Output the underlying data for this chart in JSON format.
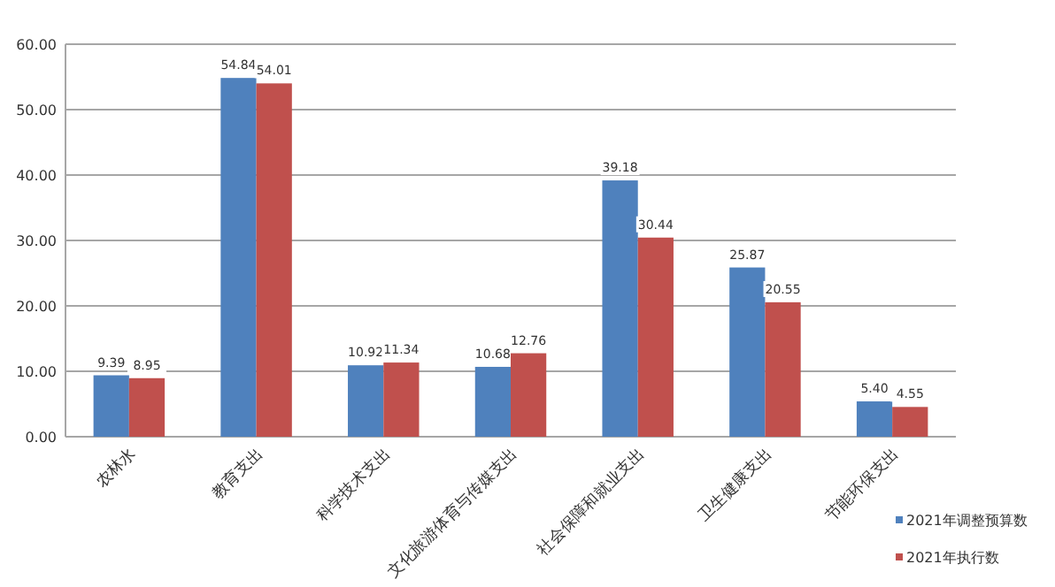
{
  "chart_data": {
    "type": "bar",
    "categories": [
      "农林水",
      "教育支出",
      "科学技术支出",
      "文化旅游体育与传媒支出",
      "社会保障和就业支出",
      "卫生健康支出",
      "节能环保支出"
    ],
    "series": [
      {
        "name": "2021年调整预算数",
        "color": "#4f81bd",
        "values": [
          9.39,
          54.84,
          10.92,
          10.68,
          39.18,
          25.87,
          5.4
        ],
        "value_labels": [
          "9.39",
          "54.84",
          "10.92",
          "10.68",
          "39.18",
          "25.87",
          "5.40"
        ]
      },
      {
        "name": "2021年执行数",
        "color": "#c0504d",
        "values": [
          8.95,
          54.01,
          11.34,
          12.76,
          30.44,
          20.55,
          4.55
        ],
        "value_labels": [
          "8.95",
          "54.01",
          "11.34",
          "12.76",
          "30.44",
          "20.55",
          "4.55"
        ]
      }
    ],
    "ylim": [
      0,
      60
    ],
    "yticks": [
      {
        "value": 0,
        "label": "0.00"
      },
      {
        "value": 10,
        "label": "10.00"
      },
      {
        "value": 20,
        "label": "20.00"
      },
      {
        "value": 30,
        "label": "30.00"
      },
      {
        "value": 40,
        "label": "40.00"
      },
      {
        "value": 50,
        "label": "50.00"
      },
      {
        "value": 60,
        "label": "60.00"
      }
    ],
    "grid": "y",
    "legend": "bottom right"
  }
}
